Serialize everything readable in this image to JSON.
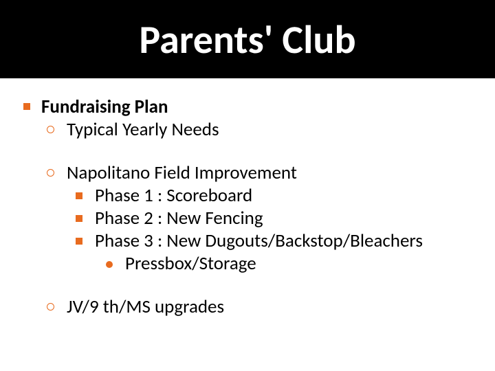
{
  "title": "Parents' Club",
  "colors": {
    "title_bg": "#000000",
    "title_fg": "#ffffff",
    "body_bg": "#ffffff",
    "body_fg": "#000000",
    "bullet": "#e86b1f"
  },
  "typography": {
    "title_fontsize": 58,
    "title_weight": 700,
    "body_fontsize": 27,
    "l1_weight": 700,
    "l2_weight": 400
  },
  "outline": {
    "l1": "Fundraising Plan",
    "items": [
      {
        "text": "Typical Yearly Needs"
      },
      {
        "text": "Napolitano Field Improvement",
        "sub": [
          {
            "text": "Phase 1 : Scoreboard"
          },
          {
            "text": "Phase 2 : New Fencing"
          },
          {
            "text": "Phase 3 : New Dugouts/Backstop/Bleachers",
            "sub": [
              {
                "text": "Pressbox/Storage"
              }
            ]
          }
        ]
      },
      {
        "text": "JV/9 th/MS upgrades"
      }
    ]
  }
}
